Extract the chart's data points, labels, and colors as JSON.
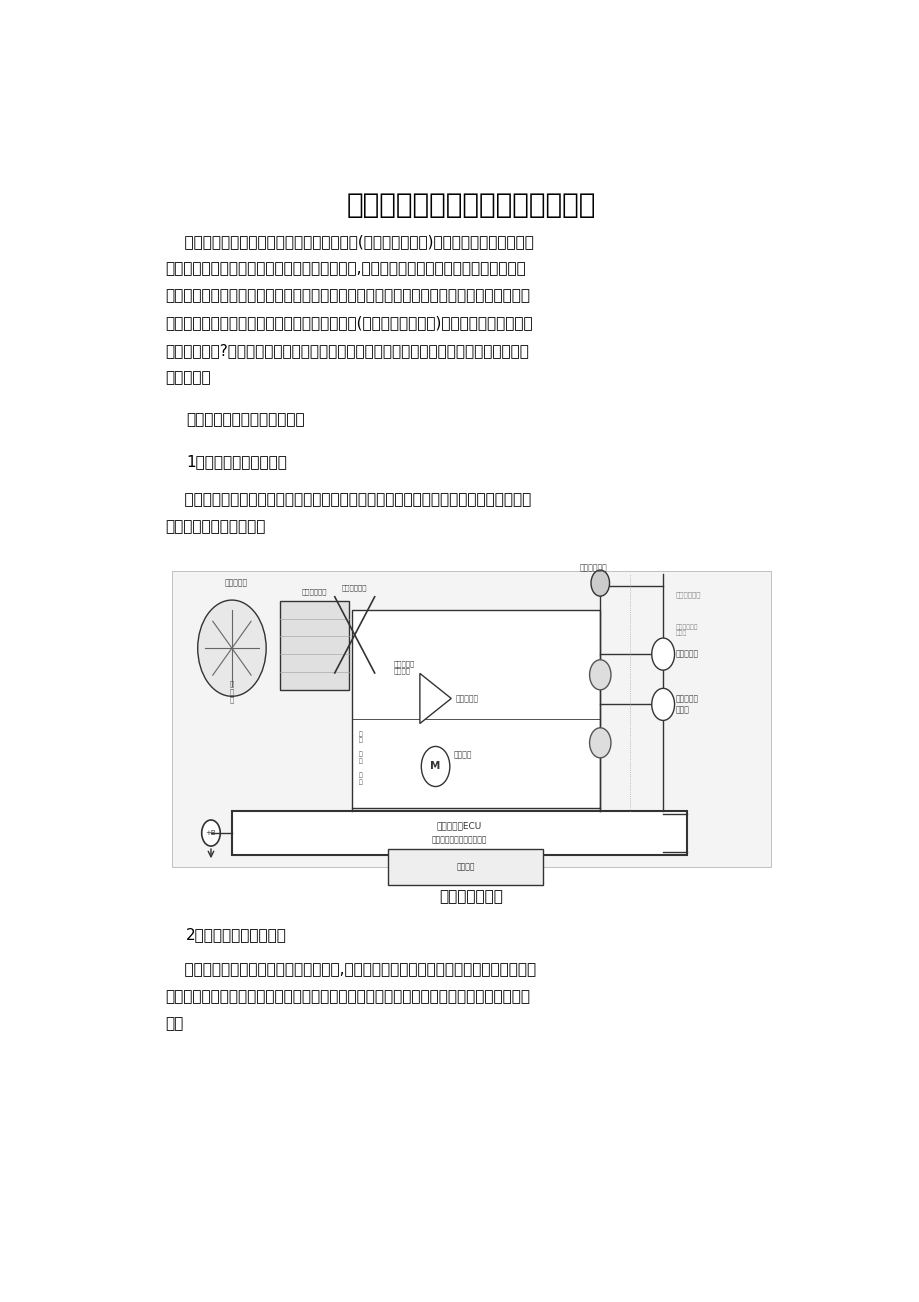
{
  "title": "不同位置上汽车传感器原理及应用",
  "para1_lines": [
    "    随着汽车电子技术的不断发展，汽车传感器(汽车传感器类型)在汽车发动机、底盘和车",
    "身的各个系统中负担着信息的采集和传输的功能,汽车各个系统的控制过程正是依靠传感器",
    "及时识别外界变化和系统本身的变化，再根据变化的信息去控制系统本身的工作的。因此汽",
    "车传感器在汽车电子控制中有着非常重要的作用(汽车传感器的作用)。那么，这些传感器是",
    "如何工作的呢?小编通过搜集整理资料，对应用在汽车不同控制系统的传感器原理作了简单",
    "分析总结。"
  ],
  "section_intro": "不同位置汽车传感器原理介绍",
  "section1_title": "1、车外温度传感器原理",
  "sec1_lines": [
    "    车外温度传感器一般以热敏电阻制成，当车外温度变化时其电阻发生改变。温度低时电",
    "阻大，温度高时电阻小。"
  ],
  "image_caption": "压缩机控制原理",
  "section2_title": "2、车内温度传感器原理",
  "sec2_lines": [
    "    车内温度传感器同样采用热敏电阻材料,具有负温度系数特性。一般安装在仪表盘下方，",
    "并以空气管连接到空调通风管上，当气流迅速通过时，产生的真空将空气引经车内温度传感",
    "器。"
  ],
  "bg_color": "#ffffff",
  "text_color": "#000000",
  "title_fontsize": 20,
  "body_fontsize": 11,
  "page_width": 9.2,
  "page_height": 13.02
}
